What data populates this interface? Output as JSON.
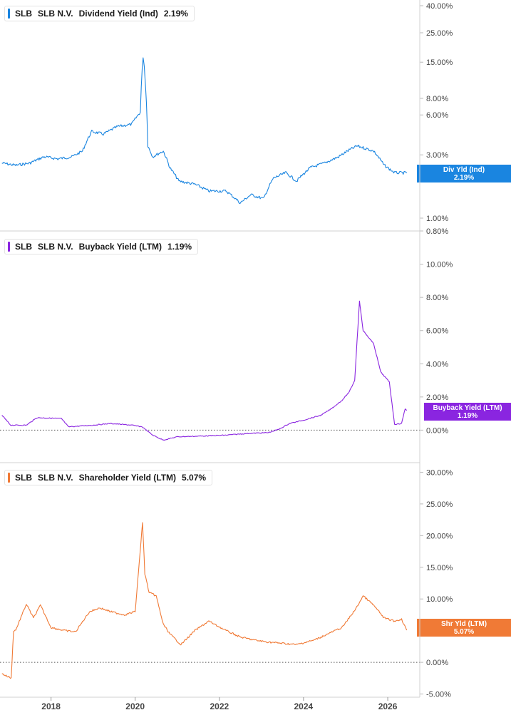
{
  "panels": [
    {
      "ticker": "SLB",
      "company": "SLB N.V.",
      "metric": "Dividend Yield (Ind)",
      "value": "2.19%",
      "tag_label": "Div Yld (Ind)",
      "tag_value": "2.19%"
    },
    {
      "ticker": "SLB",
      "company": "SLB N.V.",
      "metric": "Buyback Yield (LTM)",
      "value": "1.19%",
      "tag_label": "Buyback Yield (LTM)",
      "tag_value": "1.19%"
    },
    {
      "ticker": "SLB",
      "company": "SLB N.V.",
      "metric": "Shareholder Yield (LTM)",
      "value": "5.07%",
      "tag_label": "Shr Yld (LTM)",
      "tag_value": "5.07%"
    }
  ],
  "colors": {
    "dividend": "#1a85e0",
    "buyback": "#8a25e0",
    "shareholder": "#f07a36",
    "grid": "#e6e6e6",
    "axis_text": "#444444"
  },
  "chart_data": [
    {
      "type": "line",
      "title": "SLB SLB N.V. Dividend Yield (Ind) 2.19%",
      "y_scale": "log",
      "ylim": [
        0.8,
        40
      ],
      "y_ticks": [
        "40.00%",
        "25.00%",
        "15.00%",
        "8.00%",
        "6.00%",
        "3.00%",
        "2.00%",
        "1.00%",
        "0.80%"
      ],
      "y_tick_values": [
        40,
        25,
        15,
        8,
        6,
        3,
        2,
        1,
        0.8
      ],
      "series": [
        {
          "color": "#1a85e0",
          "x": [
            "2016-11-01",
            "2017-03-01",
            "2017-07-01",
            "2017-11-01",
            "2018-03-01",
            "2018-07-01",
            "2018-10-01",
            "2018-12-20",
            "2019-04-01",
            "2019-08-01",
            "2019-12-01",
            "2020-02-15",
            "2020-03-10",
            "2020-03-20",
            "2020-04-01",
            "2020-04-20",
            "2020-06-01",
            "2020-09-01",
            "2020-10-28",
            "2021-01-15",
            "2021-06-01",
            "2021-10-01",
            "2022-03-01",
            "2022-07-01",
            "2022-10-01",
            "2023-01-20",
            "2023-04-15",
            "2023-08-01",
            "2023-11-01",
            "2024-03-01",
            "2024-07-01",
            "2024-11-01",
            "2025-01-15",
            "2025-04-10",
            "2025-06-01",
            "2025-09-01",
            "2025-12-01",
            "2026-03-01",
            "2026-06-15"
          ],
          "y": [
            2.6,
            2.5,
            2.6,
            2.9,
            2.8,
            2.9,
            3.2,
            4.5,
            4.3,
            4.9,
            5.1,
            6.3,
            16.5,
            14.0,
            9.5,
            3.5,
            2.9,
            3.2,
            2.4,
            1.9,
            1.8,
            1.6,
            1.6,
            1.3,
            1.5,
            1.4,
            2.0,
            2.2,
            1.9,
            2.4,
            2.6,
            2.9,
            3.2,
            3.5,
            3.4,
            3.2,
            2.5,
            2.2,
            2.19
          ]
        }
      ]
    },
    {
      "type": "line",
      "title": "SLB SLB N.V. Buyback Yield (LTM) 1.19%",
      "ylim": [
        -0.8,
        10.8
      ],
      "y_ticks": [
        "10.00%",
        "8.00%",
        "6.00%",
        "4.00%",
        "2.00%",
        "0.00%"
      ],
      "y_tick_values": [
        10,
        8,
        6,
        4,
        2,
        0
      ],
      "series": [
        {
          "color": "#8a25e0",
          "x": [
            "2016-11-01",
            "2017-01-15",
            "2017-06-01",
            "2017-09-01",
            "2018-04-01",
            "2018-06-01",
            "2019-01-01",
            "2019-06-01",
            "2019-12-01",
            "2020-03-01",
            "2020-06-01",
            "2020-09-01",
            "2021-01-01",
            "2021-09-01",
            "2022-03-01",
            "2022-09-01",
            "2023-03-01",
            "2023-06-01",
            "2023-09-01",
            "2024-01-01",
            "2024-06-01",
            "2024-09-01",
            "2024-12-01",
            "2025-02-01",
            "2025-03-20",
            "2025-05-01",
            "2025-06-01",
            "2025-09-01",
            "2025-11-01",
            "2026-01-15",
            "2026-03-01",
            "2026-05-01",
            "2026-06-01",
            "2026-06-15"
          ],
          "y": [
            0.9,
            0.3,
            0.3,
            0.75,
            0.7,
            0.2,
            0.3,
            0.4,
            0.3,
            0.2,
            -0.3,
            -0.6,
            -0.4,
            -0.35,
            -0.3,
            -0.2,
            -0.15,
            0.05,
            0.4,
            0.6,
            0.9,
            1.3,
            1.8,
            2.3,
            3.0,
            7.8,
            6.0,
            5.2,
            3.5,
            2.9,
            0.35,
            0.4,
            1.3,
            1.19
          ]
        }
      ]
    },
    {
      "type": "line",
      "title": "SLB SLB N.V. Shareholder Yield (LTM) 5.07%",
      "ylim": [
        -5.5,
        30.5
      ],
      "y_ticks": [
        "30.00%",
        "25.00%",
        "20.00%",
        "15.00%",
        "10.00%",
        "5.00%",
        "0.00%",
        "-5.00%"
      ],
      "y_tick_values": [
        30,
        25,
        20,
        15,
        10,
        5,
        0,
        -5
      ],
      "x_ticks": [
        "2018",
        "2020",
        "2022",
        "2024",
        "2026"
      ],
      "series": [
        {
          "color": "#f07a36",
          "x": [
            "2016-11-01",
            "2017-01-20",
            "2017-02-10",
            "2017-03-01",
            "2017-06-01",
            "2017-08-01",
            "2017-10-01",
            "2018-01-01",
            "2018-05-01",
            "2018-08-01",
            "2018-12-01",
            "2019-03-01",
            "2019-06-01",
            "2019-10-01",
            "2020-01-01",
            "2020-03-05",
            "2020-03-25",
            "2020-05-01",
            "2020-07-01",
            "2020-09-01",
            "2020-10-28",
            "2021-02-01",
            "2021-06-01",
            "2021-10-01",
            "2022-03-01",
            "2022-07-01",
            "2022-11-01",
            "2023-03-01",
            "2023-07-01",
            "2023-11-01",
            "2024-04-01",
            "2024-08-01",
            "2024-12-01",
            "2025-04-01",
            "2025-06-01",
            "2025-09-01",
            "2025-12-01",
            "2026-03-01",
            "2026-05-01",
            "2026-06-15"
          ],
          "y": [
            -1.8,
            -2.5,
            5.0,
            5.1,
            9.2,
            7.0,
            9.0,
            5.5,
            5.0,
            4.8,
            8.0,
            8.6,
            8.0,
            7.5,
            8.0,
            22.0,
            14.0,
            11.0,
            10.5,
            6.0,
            4.5,
            2.8,
            5.0,
            6.5,
            5.0,
            4.0,
            3.5,
            3.2,
            3.0,
            2.8,
            3.5,
            4.5,
            5.5,
            8.5,
            10.5,
            9.0,
            7.0,
            6.5,
            6.8,
            5.07
          ]
        }
      ]
    }
  ]
}
